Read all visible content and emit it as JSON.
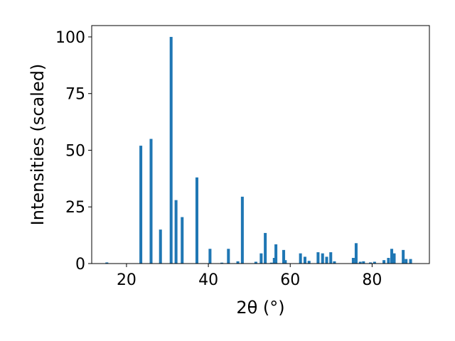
{
  "chart_data": {
    "type": "bar",
    "xlabel": "2θ (°)",
    "ylabel": "Intensities (scaled)",
    "xlim": [
      11.5,
      94
    ],
    "ylim": [
      0,
      105
    ],
    "xticks": [
      "20",
      "40",
      "60",
      "80"
    ],
    "yticks": [
      "0",
      "25",
      "50",
      "75",
      "100"
    ],
    "bar_color": "#1f77b4",
    "bar_width": 0.7,
    "x": [
      15.2,
      23.5,
      26.0,
      28.3,
      30.9,
      32.1,
      33.6,
      37.2,
      40.4,
      43.3,
      44.9,
      47.2,
      48.3,
      51.6,
      52.9,
      53.9,
      55.4,
      56.1,
      56.5,
      58.4,
      58.8,
      62.5,
      63.6,
      64.6,
      66.8,
      67.9,
      68.9,
      69.9,
      70.8,
      75.4,
      76.1,
      77.1,
      77.9,
      79.6,
      80.6,
      82.9,
      84.0,
      84.8,
      85.4,
      87.6,
      88.3,
      89.4
    ],
    "values": [
      0.5,
      52.0,
      55.0,
      15.0,
      100.0,
      28.0,
      20.5,
      38.0,
      6.5,
      0.4,
      6.5,
      1.0,
      29.5,
      0.8,
      4.5,
      13.5,
      0.4,
      2.5,
      8.5,
      6.0,
      1.5,
      4.5,
      3.0,
      1.2,
      5.0,
      4.5,
      3.0,
      5.0,
      1.0,
      2.5,
      9.0,
      0.8,
      1.0,
      0.5,
      0.8,
      1.5,
      2.5,
      6.5,
      4.5,
      6.0,
      2.0,
      2.0
    ]
  }
}
